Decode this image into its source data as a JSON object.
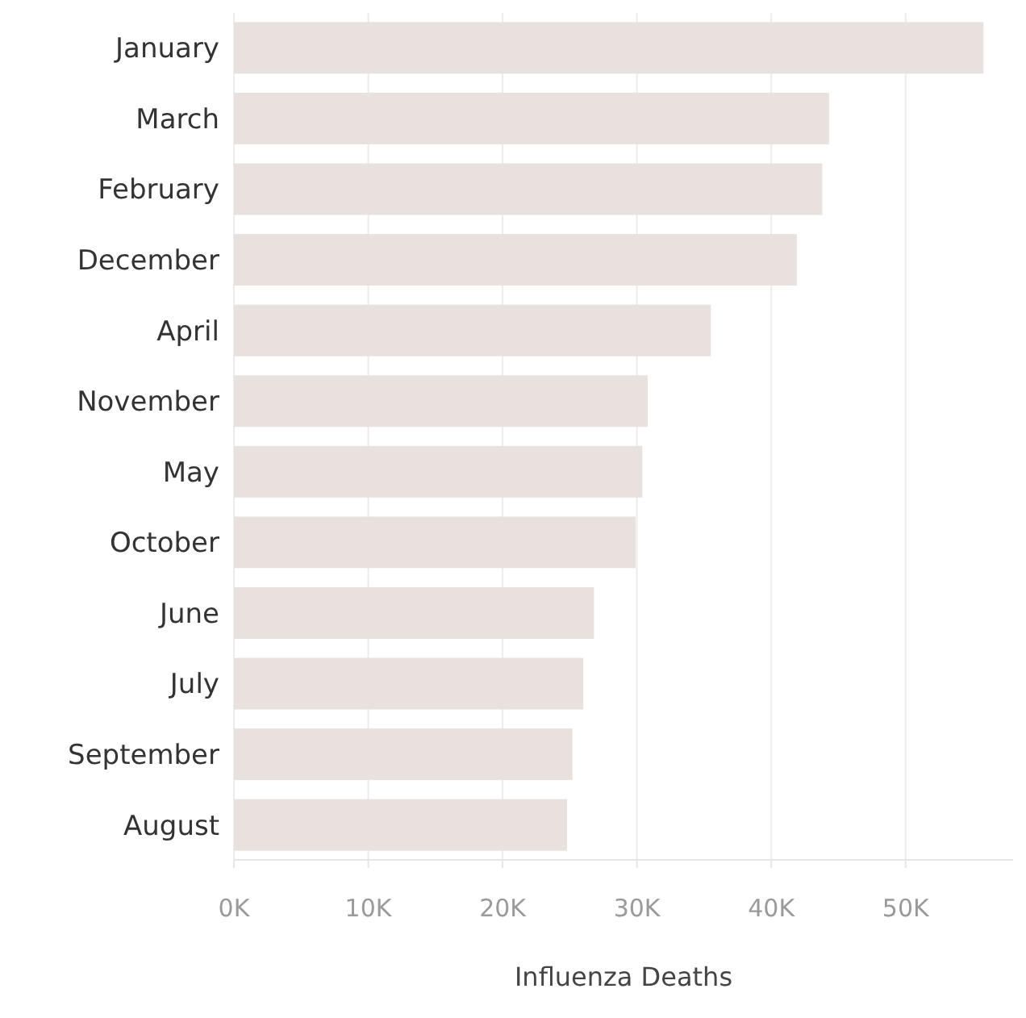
{
  "chart_data": {
    "type": "bar",
    "orientation": "horizontal",
    "xlabel": "Influenza Deaths",
    "categories": [
      "January",
      "March",
      "February",
      "December",
      "April",
      "November",
      "May",
      "October",
      "June",
      "July",
      "September",
      "August"
    ],
    "values": [
      55800,
      44300,
      43800,
      41900,
      35500,
      30800,
      30400,
      29900,
      26800,
      26000,
      25200,
      24800
    ],
    "color": "#e8e1de",
    "xlim": [
      0,
      58000
    ],
    "xticks": [
      {
        "value": 0,
        "label": "0K"
      },
      {
        "value": 10000,
        "label": "10K"
      },
      {
        "value": 20000,
        "label": "20K"
      },
      {
        "value": 30000,
        "label": "30K"
      },
      {
        "value": 40000,
        "label": "40K"
      },
      {
        "value": 50000,
        "label": "50K"
      }
    ],
    "grid": "x"
  }
}
